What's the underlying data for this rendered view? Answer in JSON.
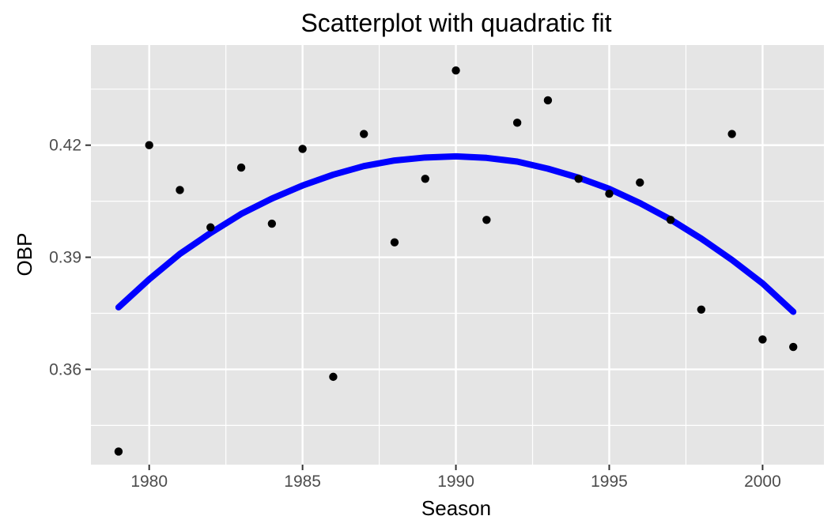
{
  "chart_data": {
    "type": "scatter",
    "title": "Scatterplot with quadratic fit",
    "xlabel": "Season",
    "ylabel": "OBP",
    "xlim": [
      1978.1,
      2002.0
    ],
    "ylim": [
      0.3345,
      0.4468
    ],
    "x_ticks": [
      1980,
      1985,
      1990,
      1995,
      2000
    ],
    "x_tick_labels": [
      "1980",
      "1985",
      "1990",
      "1995",
      "2000"
    ],
    "y_ticks": [
      0.36,
      0.39,
      0.42
    ],
    "y_tick_labels": [
      "0.36",
      "0.39",
      "0.42"
    ],
    "grid": true,
    "colors": {
      "panel_background": "#e5e5e5",
      "grid": "#ffffff",
      "points": "#000000",
      "fit_line": "#0000ff"
    },
    "points": {
      "x": [
        1979,
        1980,
        1981,
        1982,
        1983,
        1984,
        1985,
        1986,
        1987,
        1988,
        1989,
        1990,
        1991,
        1992,
        1993,
        1994,
        1995,
        1996,
        1997,
        1998,
        1999,
        2000,
        2001
      ],
      "y": [
        0.338,
        0.42,
        0.408,
        0.398,
        0.414,
        0.399,
        0.419,
        0.358,
        0.423,
        0.394,
        0.411,
        0.44,
        0.4,
        0.426,
        0.432,
        0.411,
        0.407,
        0.41,
        0.4,
        0.376,
        0.423,
        0.368,
        0.366
      ]
    },
    "fit": {
      "type": "quadratic",
      "x": [
        1979,
        1980,
        1981,
        1982,
        1983,
        1984,
        1985,
        1986,
        1987,
        1988,
        1989,
        1990,
        1991,
        1992,
        1993,
        1994,
        1995,
        1996,
        1997,
        1998,
        1999,
        2000,
        2001
      ],
      "y": [
        0.3766,
        0.3841,
        0.3909,
        0.3965,
        0.4016,
        0.4057,
        0.4092,
        0.4121,
        0.4144,
        0.4159,
        0.4167,
        0.417,
        0.4166,
        0.4156,
        0.4137,
        0.4113,
        0.4083,
        0.4045,
        0.4001,
        0.395,
        0.3893,
        0.383,
        0.3754
      ]
    }
  }
}
